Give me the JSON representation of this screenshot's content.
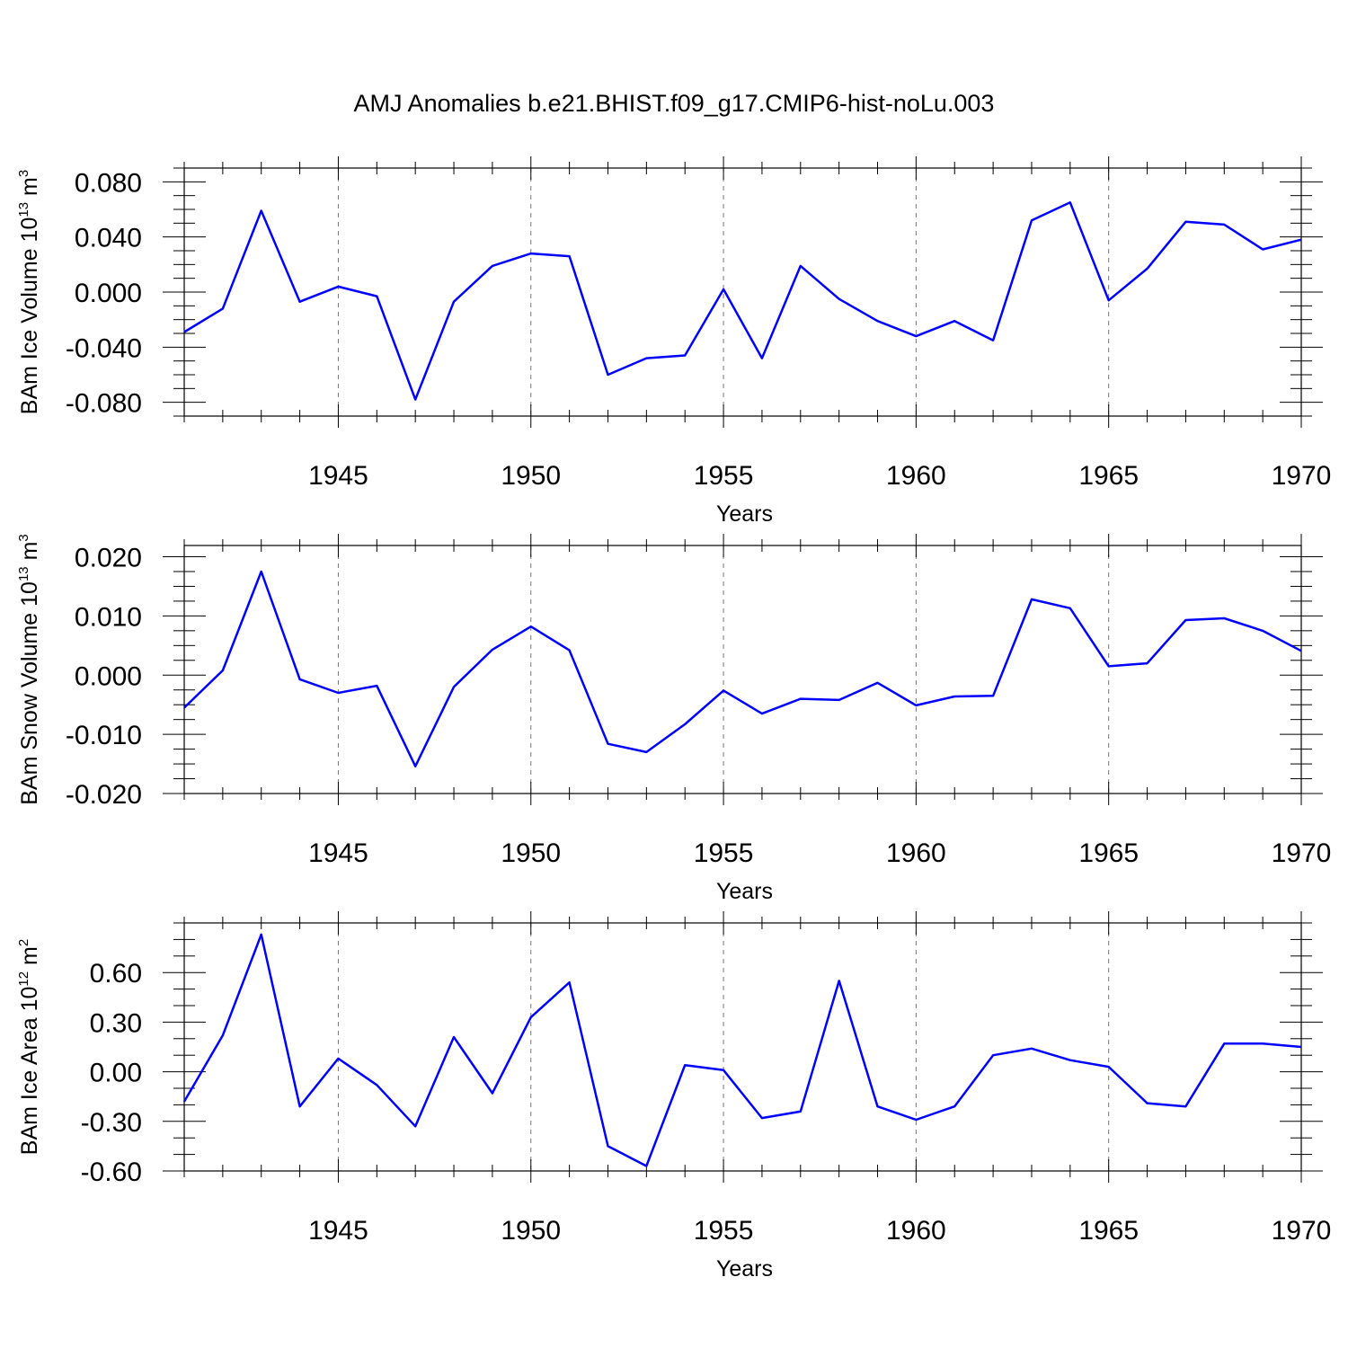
{
  "title": "AMJ Anomalies b.e21.BHIST.f09_g17.CMIP6-hist-noLu.003",
  "colors": {
    "line": "#0000ff",
    "grid": "#777777",
    "axis": "#000000"
  },
  "chart_data": [
    {
      "type": "line",
      "ylabel_text": "BAm Ice Volume 10",
      "ylabel_exp": "13",
      "ylabel_unit": " m",
      "ylabel_unit_exp": "3",
      "xlabel": "Years",
      "xlim": [
        1941,
        1970
      ],
      "ylim": [
        -0.09,
        0.09
      ],
      "yticks": [
        -0.08,
        -0.04,
        0.0,
        0.04,
        0.08
      ],
      "ytick_labels": [
        "-0.080",
        "-0.040",
        "0.000",
        "0.040",
        "0.080"
      ],
      "yminor_step": 0.01,
      "xticks": [
        1945,
        1950,
        1955,
        1960,
        1965,
        1970
      ],
      "xtick_labels": [
        "1945",
        "1950",
        "1955",
        "1960",
        "1965",
        "1970"
      ],
      "grid_x": [
        1945,
        1950,
        1955,
        1960,
        1965
      ],
      "x": [
        1941,
        1942,
        1943,
        1944,
        1945,
        1946,
        1947,
        1948,
        1949,
        1950,
        1951,
        1952,
        1953,
        1954,
        1955,
        1956,
        1957,
        1958,
        1959,
        1960,
        1961,
        1962,
        1963,
        1964,
        1965,
        1966,
        1967,
        1968,
        1969,
        1970
      ],
      "y": [
        -0.029,
        -0.012,
        0.059,
        -0.007,
        0.004,
        -0.003,
        -0.078,
        -0.007,
        0.019,
        0.028,
        0.026,
        -0.06,
        -0.048,
        -0.046,
        0.002,
        -0.048,
        0.019,
        -0.005,
        -0.021,
        -0.032,
        -0.021,
        -0.035,
        0.052,
        0.065,
        -0.006,
        0.017,
        0.051,
        0.049,
        0.031,
        0.038
      ]
    },
    {
      "type": "line",
      "ylabel_text": "BAm Snow Volume 10",
      "ylabel_exp": "13",
      "ylabel_unit": " m",
      "ylabel_unit_exp": "3",
      "xlabel": "Years",
      "xlim": [
        1941,
        1970
      ],
      "ylim": [
        -0.02,
        0.0219
      ],
      "yticks": [
        -0.02,
        -0.01,
        0.0,
        0.01,
        0.02
      ],
      "ytick_labels": [
        "-0.020",
        "-0.010",
        "0.000",
        "0.010",
        "0.020"
      ],
      "yminor_step": 0.0025,
      "xticks": [
        1945,
        1950,
        1955,
        1960,
        1965,
        1970
      ],
      "xtick_labels": [
        "1945",
        "1950",
        "1955",
        "1960",
        "1965",
        "1970"
      ],
      "grid_x": [
        1945,
        1950,
        1955,
        1960,
        1965
      ],
      "x": [
        1941,
        1942,
        1943,
        1944,
        1945,
        1946,
        1947,
        1948,
        1949,
        1950,
        1951,
        1952,
        1953,
        1954,
        1955,
        1956,
        1957,
        1958,
        1959,
        1960,
        1961,
        1962,
        1963,
        1964,
        1965,
        1966,
        1967,
        1968,
        1969,
        1970
      ],
      "y": [
        -0.0055,
        0.0008,
        0.0175,
        -0.0007,
        -0.003,
        -0.0018,
        -0.0154,
        -0.002,
        0.0043,
        0.0082,
        0.0042,
        -0.0116,
        -0.013,
        -0.0083,
        -0.0026,
        -0.0065,
        -0.004,
        -0.0042,
        -0.0013,
        -0.0051,
        -0.0036,
        -0.0035,
        0.0128,
        0.0113,
        0.0015,
        0.002,
        0.0093,
        0.0096,
        0.0075,
        0.0041
      ]
    },
    {
      "type": "line",
      "ylabel_text": "BAm Ice Area 10",
      "ylabel_exp": "12",
      "ylabel_unit": " m",
      "ylabel_unit_exp": "2",
      "xlabel": "Years",
      "xlim": [
        1941,
        1970
      ],
      "ylim": [
        -0.6,
        0.9
      ],
      "yticks": [
        -0.6,
        -0.3,
        0.0,
        0.3,
        0.6
      ],
      "ytick_labels": [
        "-0.60",
        "-0.30",
        "0.00",
        "0.30",
        "0.60"
      ],
      "yminor_step": 0.1,
      "xticks": [
        1945,
        1950,
        1955,
        1960,
        1965,
        1970
      ],
      "xtick_labels": [
        "1945",
        "1950",
        "1955",
        "1960",
        "1965",
        "1970"
      ],
      "grid_x": [
        1945,
        1950,
        1955,
        1960,
        1965
      ],
      "x": [
        1941,
        1942,
        1943,
        1944,
        1945,
        1946,
        1947,
        1948,
        1949,
        1950,
        1951,
        1952,
        1953,
        1954,
        1955,
        1956,
        1957,
        1958,
        1959,
        1960,
        1961,
        1962,
        1963,
        1964,
        1965,
        1966,
        1967,
        1968,
        1969,
        1970
      ],
      "y": [
        -0.18,
        0.22,
        0.83,
        -0.21,
        0.08,
        -0.08,
        -0.33,
        0.21,
        -0.13,
        0.33,
        0.54,
        -0.45,
        -0.57,
        0.04,
        0.01,
        -0.28,
        -0.24,
        0.55,
        -0.21,
        -0.29,
        -0.21,
        0.1,
        0.14,
        0.07,
        0.03,
        -0.19,
        -0.21,
        0.17,
        0.17,
        0.15
      ]
    }
  ]
}
